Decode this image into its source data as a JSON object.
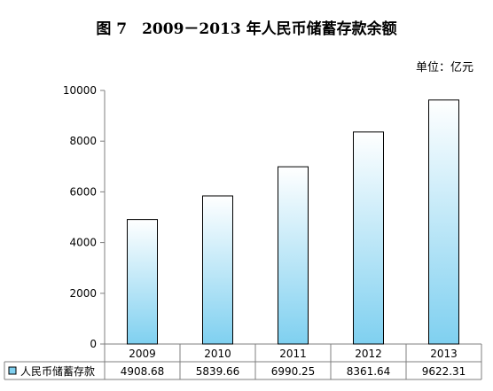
{
  "chart_data": {
    "type": "bar",
    "title": "图 7　2009－2013 年人民币储蓄存款余额",
    "unit_label": "单位：亿元",
    "categories": [
      "2009",
      "2010",
      "2011",
      "2012",
      "2013"
    ],
    "series": [
      {
        "name": "人民币储蓄存款",
        "values": [
          4908.68,
          5839.66,
          6990.25,
          8361.64,
          9622.31
        ]
      }
    ],
    "value_labels": [
      "4908.68",
      "5839.66",
      "6990.25",
      "8361.64",
      "9622.31"
    ],
    "yticks": [
      0,
      2000,
      4000,
      6000,
      8000,
      10000
    ],
    "ylim": [
      0,
      10000
    ],
    "grid": false,
    "legend": "data-table-left",
    "colors": {
      "bar_top": "#ffffff",
      "bar_bottom": "#7fd0f0",
      "bar_edge": "#000000",
      "axis": "#7f7f7f"
    }
  }
}
